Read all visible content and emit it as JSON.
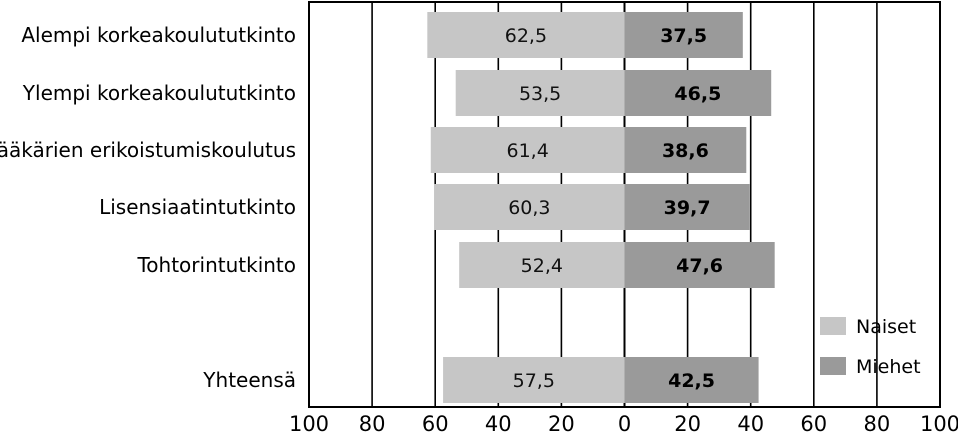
{
  "chart_data": {
    "type": "bar",
    "orientation": "horizontal",
    "layout": "diverging",
    "categories": [
      "Alempi korkeakoulututkinto",
      "Ylempi korkeakoulututkinto",
      "Lääkärien erikoistumiskoulutus",
      "Lisensiaatintutkinto",
      "Tohtorintutkinto",
      "Yhteensä"
    ],
    "series": [
      {
        "name": "Naiset",
        "direction": "left",
        "values": [
          62.5,
          53.5,
          61.4,
          60.3,
          52.4,
          57.5
        ],
        "labels": [
          "62,5",
          "53,5",
          "61,4",
          "60,3",
          "52,4",
          "57,5"
        ],
        "color": "#c6c6c6"
      },
      {
        "name": "Miehet",
        "direction": "right",
        "values": [
          37.5,
          46.5,
          38.6,
          39.7,
          47.6,
          42.5
        ],
        "labels": [
          "37,5",
          "46,5",
          "38,6",
          "39,7",
          "47,6",
          "42,5"
        ],
        "color": "#9a9a9a"
      }
    ],
    "x_ticks": [
      "100",
      "80",
      "60",
      "40",
      "20",
      "0",
      "20",
      "40",
      "60",
      "80",
      "100"
    ],
    "xlim": [
      -100,
      100
    ],
    "grid": true,
    "legend_position": "bottom-right",
    "title": "",
    "xlabel": "",
    "ylabel": ""
  }
}
